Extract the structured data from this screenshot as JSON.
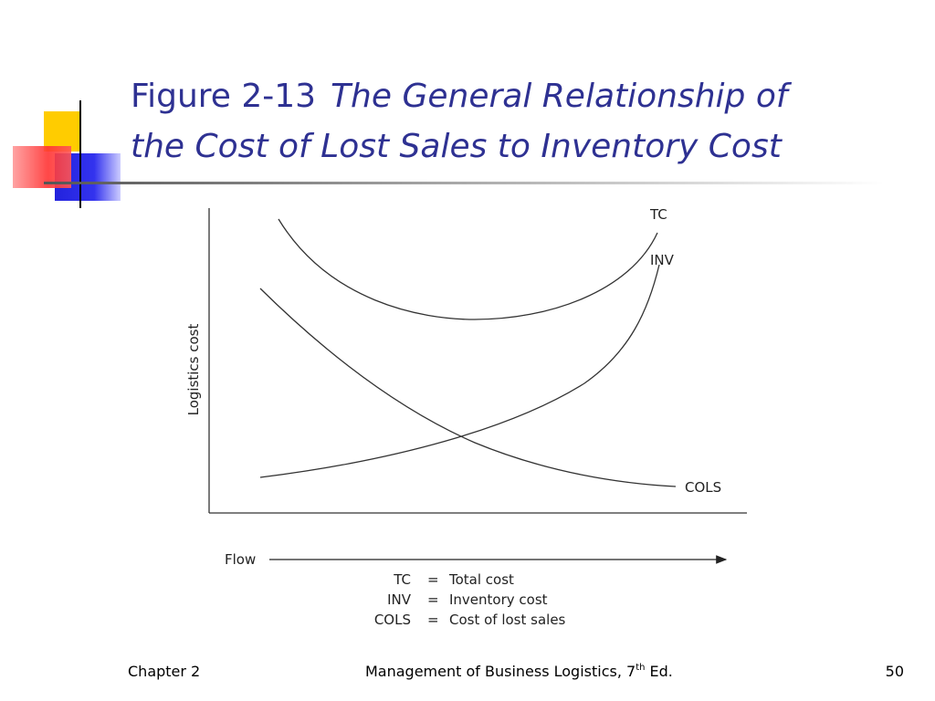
{
  "header": {
    "figure": "Figure 2-13",
    "title_line1": "The General Relationship of",
    "title_line2": "the Cost of Lost Sales to Inventory Cost"
  },
  "figure": {
    "y_axis_label": "Logistics cost",
    "x_axis_label": "Flow",
    "curve_labels": [
      "TC",
      "INV",
      "COLS"
    ],
    "legend": [
      [
        "TC",
        "=",
        "Total cost"
      ],
      [
        "INV",
        "=",
        "Inventory cost"
      ],
      [
        "COLS",
        "=",
        "Cost of lost sales"
      ]
    ]
  },
  "footer": {
    "left": "Chapter 2",
    "center": "Management of Business Logistics, 7",
    "center_sup": "th",
    "center_end": "Ed.",
    "page": "50"
  }
}
